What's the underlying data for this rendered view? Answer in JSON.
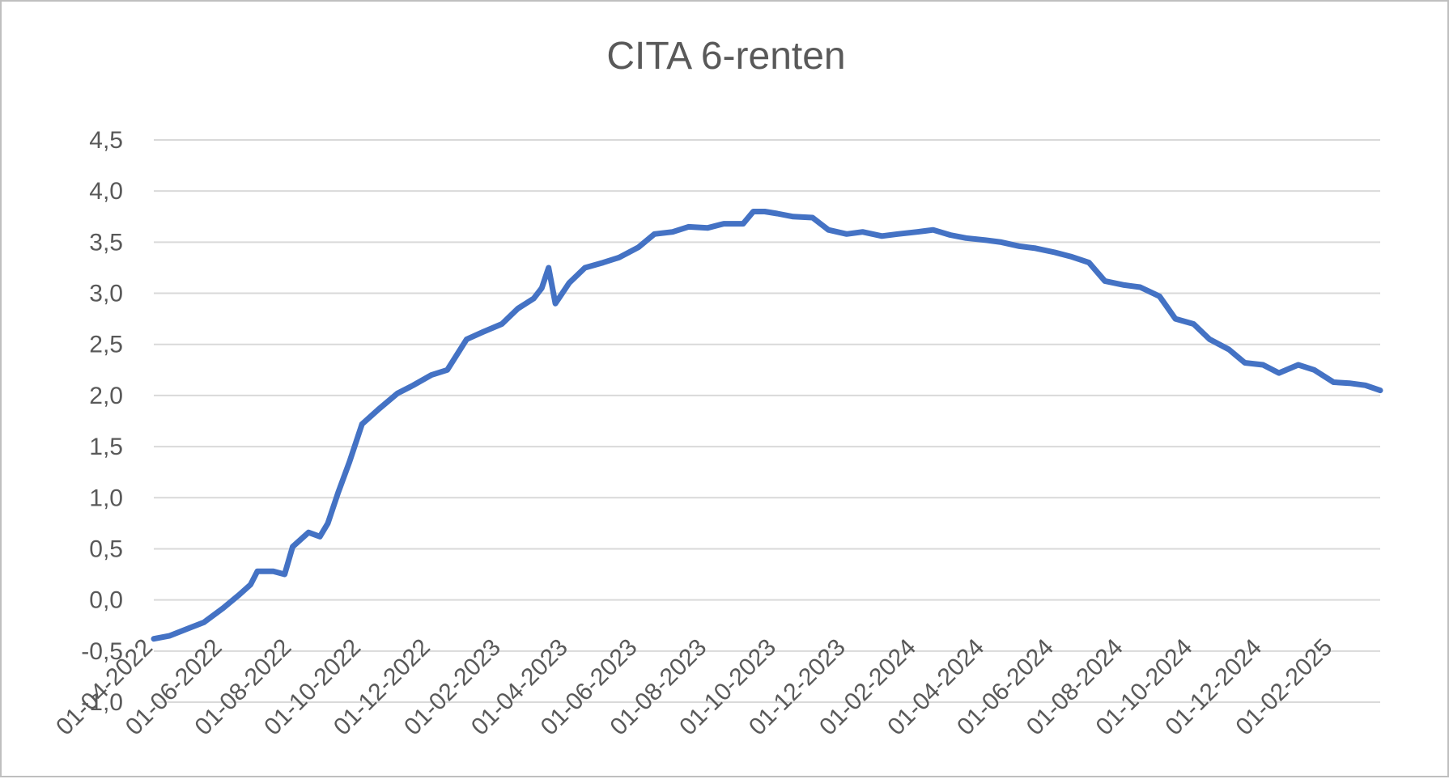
{
  "chart_data": {
    "type": "line",
    "title": "CITA 6-renten",
    "xlabel": "",
    "ylabel": "",
    "ylim": [
      -1.0,
      4.5
    ],
    "y_ticks": [
      "-1,0",
      "-0,5",
      "0,0",
      "0,5",
      "1,0",
      "1,5",
      "2,0",
      "2,5",
      "3,0",
      "3,5",
      "4,0",
      "4,5"
    ],
    "x_ticks": [
      "01-04-2022",
      "01-06-2022",
      "01-08-2022",
      "01-10-2022",
      "01-12-2022",
      "01-02-2023",
      "01-04-2023",
      "01-06-2023",
      "01-08-2023",
      "01-10-2023",
      "01-12-2023",
      "01-02-2024",
      "01-04-2024",
      "01-06-2024",
      "01-08-2024",
      "01-10-2024",
      "01-12-2024",
      "01-02-2025"
    ],
    "x_range": [
      "2022-04-01",
      "2025-03-14"
    ],
    "grid": true,
    "line_color": "#4472c4",
    "series": [
      {
        "x": [
          "2022-04-01",
          "2022-04-15",
          "2022-05-01",
          "2022-05-15",
          "2022-06-01",
          "2022-06-15",
          "2022-06-25",
          "2022-07-01",
          "2022-07-15",
          "2022-07-25",
          "2022-08-01",
          "2022-08-15",
          "2022-08-25",
          "2022-09-01",
          "2022-09-10",
          "2022-09-20",
          "2022-10-01",
          "2022-10-15",
          "2022-11-01",
          "2022-11-15",
          "2022-12-01",
          "2022-12-15",
          "2023-01-01",
          "2023-01-15",
          "2023-02-01",
          "2023-02-15",
          "2023-03-01",
          "2023-03-08",
          "2023-03-14",
          "2023-03-20",
          "2023-04-01",
          "2023-04-15",
          "2023-05-01",
          "2023-05-15",
          "2023-06-01",
          "2023-06-15",
          "2023-07-01",
          "2023-07-15",
          "2023-08-01",
          "2023-08-15",
          "2023-09-01",
          "2023-09-10",
          "2023-09-20",
          "2023-10-01",
          "2023-10-15",
          "2023-11-01",
          "2023-11-15",
          "2023-12-01",
          "2023-12-15",
          "2024-01-01",
          "2024-01-15",
          "2024-02-01",
          "2024-02-15",
          "2024-03-01",
          "2024-03-15",
          "2024-04-01",
          "2024-04-15",
          "2024-05-01",
          "2024-05-15",
          "2024-06-01",
          "2024-06-15",
          "2024-07-01",
          "2024-07-15",
          "2024-08-01",
          "2024-08-15",
          "2024-09-01",
          "2024-09-15",
          "2024-10-01",
          "2024-10-15",
          "2024-11-01",
          "2024-11-15",
          "2024-12-01",
          "2024-12-15",
          "2025-01-01",
          "2025-01-15",
          "2025-02-01",
          "2025-02-15",
          "2025-03-01",
          "2025-03-14"
        ],
        "values": [
          -0.38,
          -0.35,
          -0.28,
          -0.22,
          -0.08,
          0.05,
          0.15,
          0.28,
          0.28,
          0.25,
          0.52,
          0.66,
          0.62,
          0.75,
          1.05,
          1.35,
          1.72,
          1.86,
          2.02,
          2.1,
          2.2,
          2.25,
          2.55,
          2.62,
          2.7,
          2.85,
          2.95,
          3.05,
          3.25,
          2.9,
          3.1,
          3.25,
          3.3,
          3.35,
          3.45,
          3.58,
          3.6,
          3.65,
          3.64,
          3.68,
          3.68,
          3.8,
          3.8,
          3.78,
          3.75,
          3.74,
          3.62,
          3.58,
          3.6,
          3.56,
          3.58,
          3.6,
          3.62,
          3.57,
          3.54,
          3.52,
          3.5,
          3.46,
          3.44,
          3.4,
          3.36,
          3.3,
          3.12,
          3.08,
          3.06,
          2.97,
          2.75,
          2.7,
          2.55,
          2.45,
          2.32,
          2.3,
          2.22,
          2.3,
          2.25,
          2.13,
          2.12,
          2.1,
          2.05
        ]
      }
    ]
  }
}
